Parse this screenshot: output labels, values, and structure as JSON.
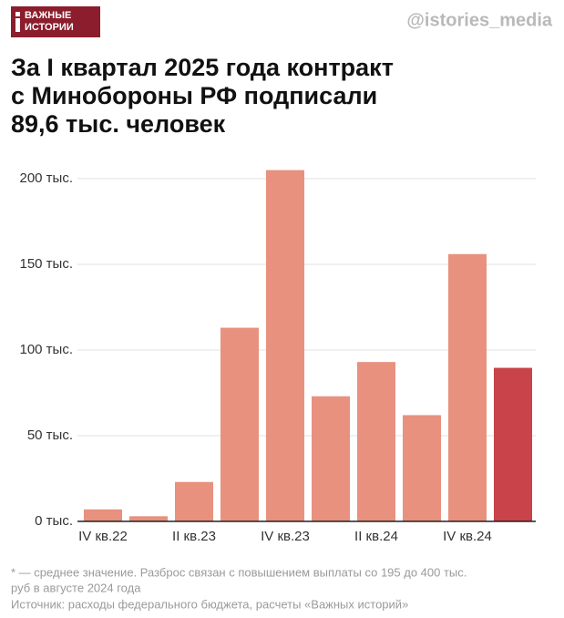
{
  "logo": [
    "ВАЖНЫЕ",
    "ИСТОРИИ"
  ],
  "handle": "@istories_media",
  "chart_data": {
    "type": "bar",
    "title": [
      "За I квартал 2025 года контракт",
      "с Минобороны РФ подписали",
      "89,6 тыс. человек"
    ],
    "categories": [
      "IV кв.22",
      null,
      "II кв.23",
      null,
      "IV кв.23",
      null,
      "II кв.24",
      null,
      "IV кв.24",
      null
    ],
    "values": [
      7,
      3,
      23,
      113,
      205,
      73,
      93,
      62,
      156,
      89.6
    ],
    "colors": [
      "#e8917e",
      "#e8917e",
      "#e8917e",
      "#e8917e",
      "#e8917e",
      "#e8917e",
      "#e8917e",
      "#e8917e",
      "#e8917e",
      "#c9434a"
    ],
    "ylim": [
      0,
      210
    ],
    "yticks": [
      {
        "value": 0,
        "label": "0 тыс."
      },
      {
        "value": 50,
        "label": "50 тыс."
      },
      {
        "value": 100,
        "label": "100 тыс."
      },
      {
        "value": 150,
        "label": "150 тыс."
      },
      {
        "value": 200,
        "label": "200 тыс."
      }
    ],
    "grid": true,
    "footnote": [
      "* — среднее значение. Разброс связан с повышением выплаты со 195 до 400 тыс.",
      "руб в августе 2024 года"
    ],
    "source": "Источник: расходы федерального бюджета, расчеты «Важных историй»"
  }
}
